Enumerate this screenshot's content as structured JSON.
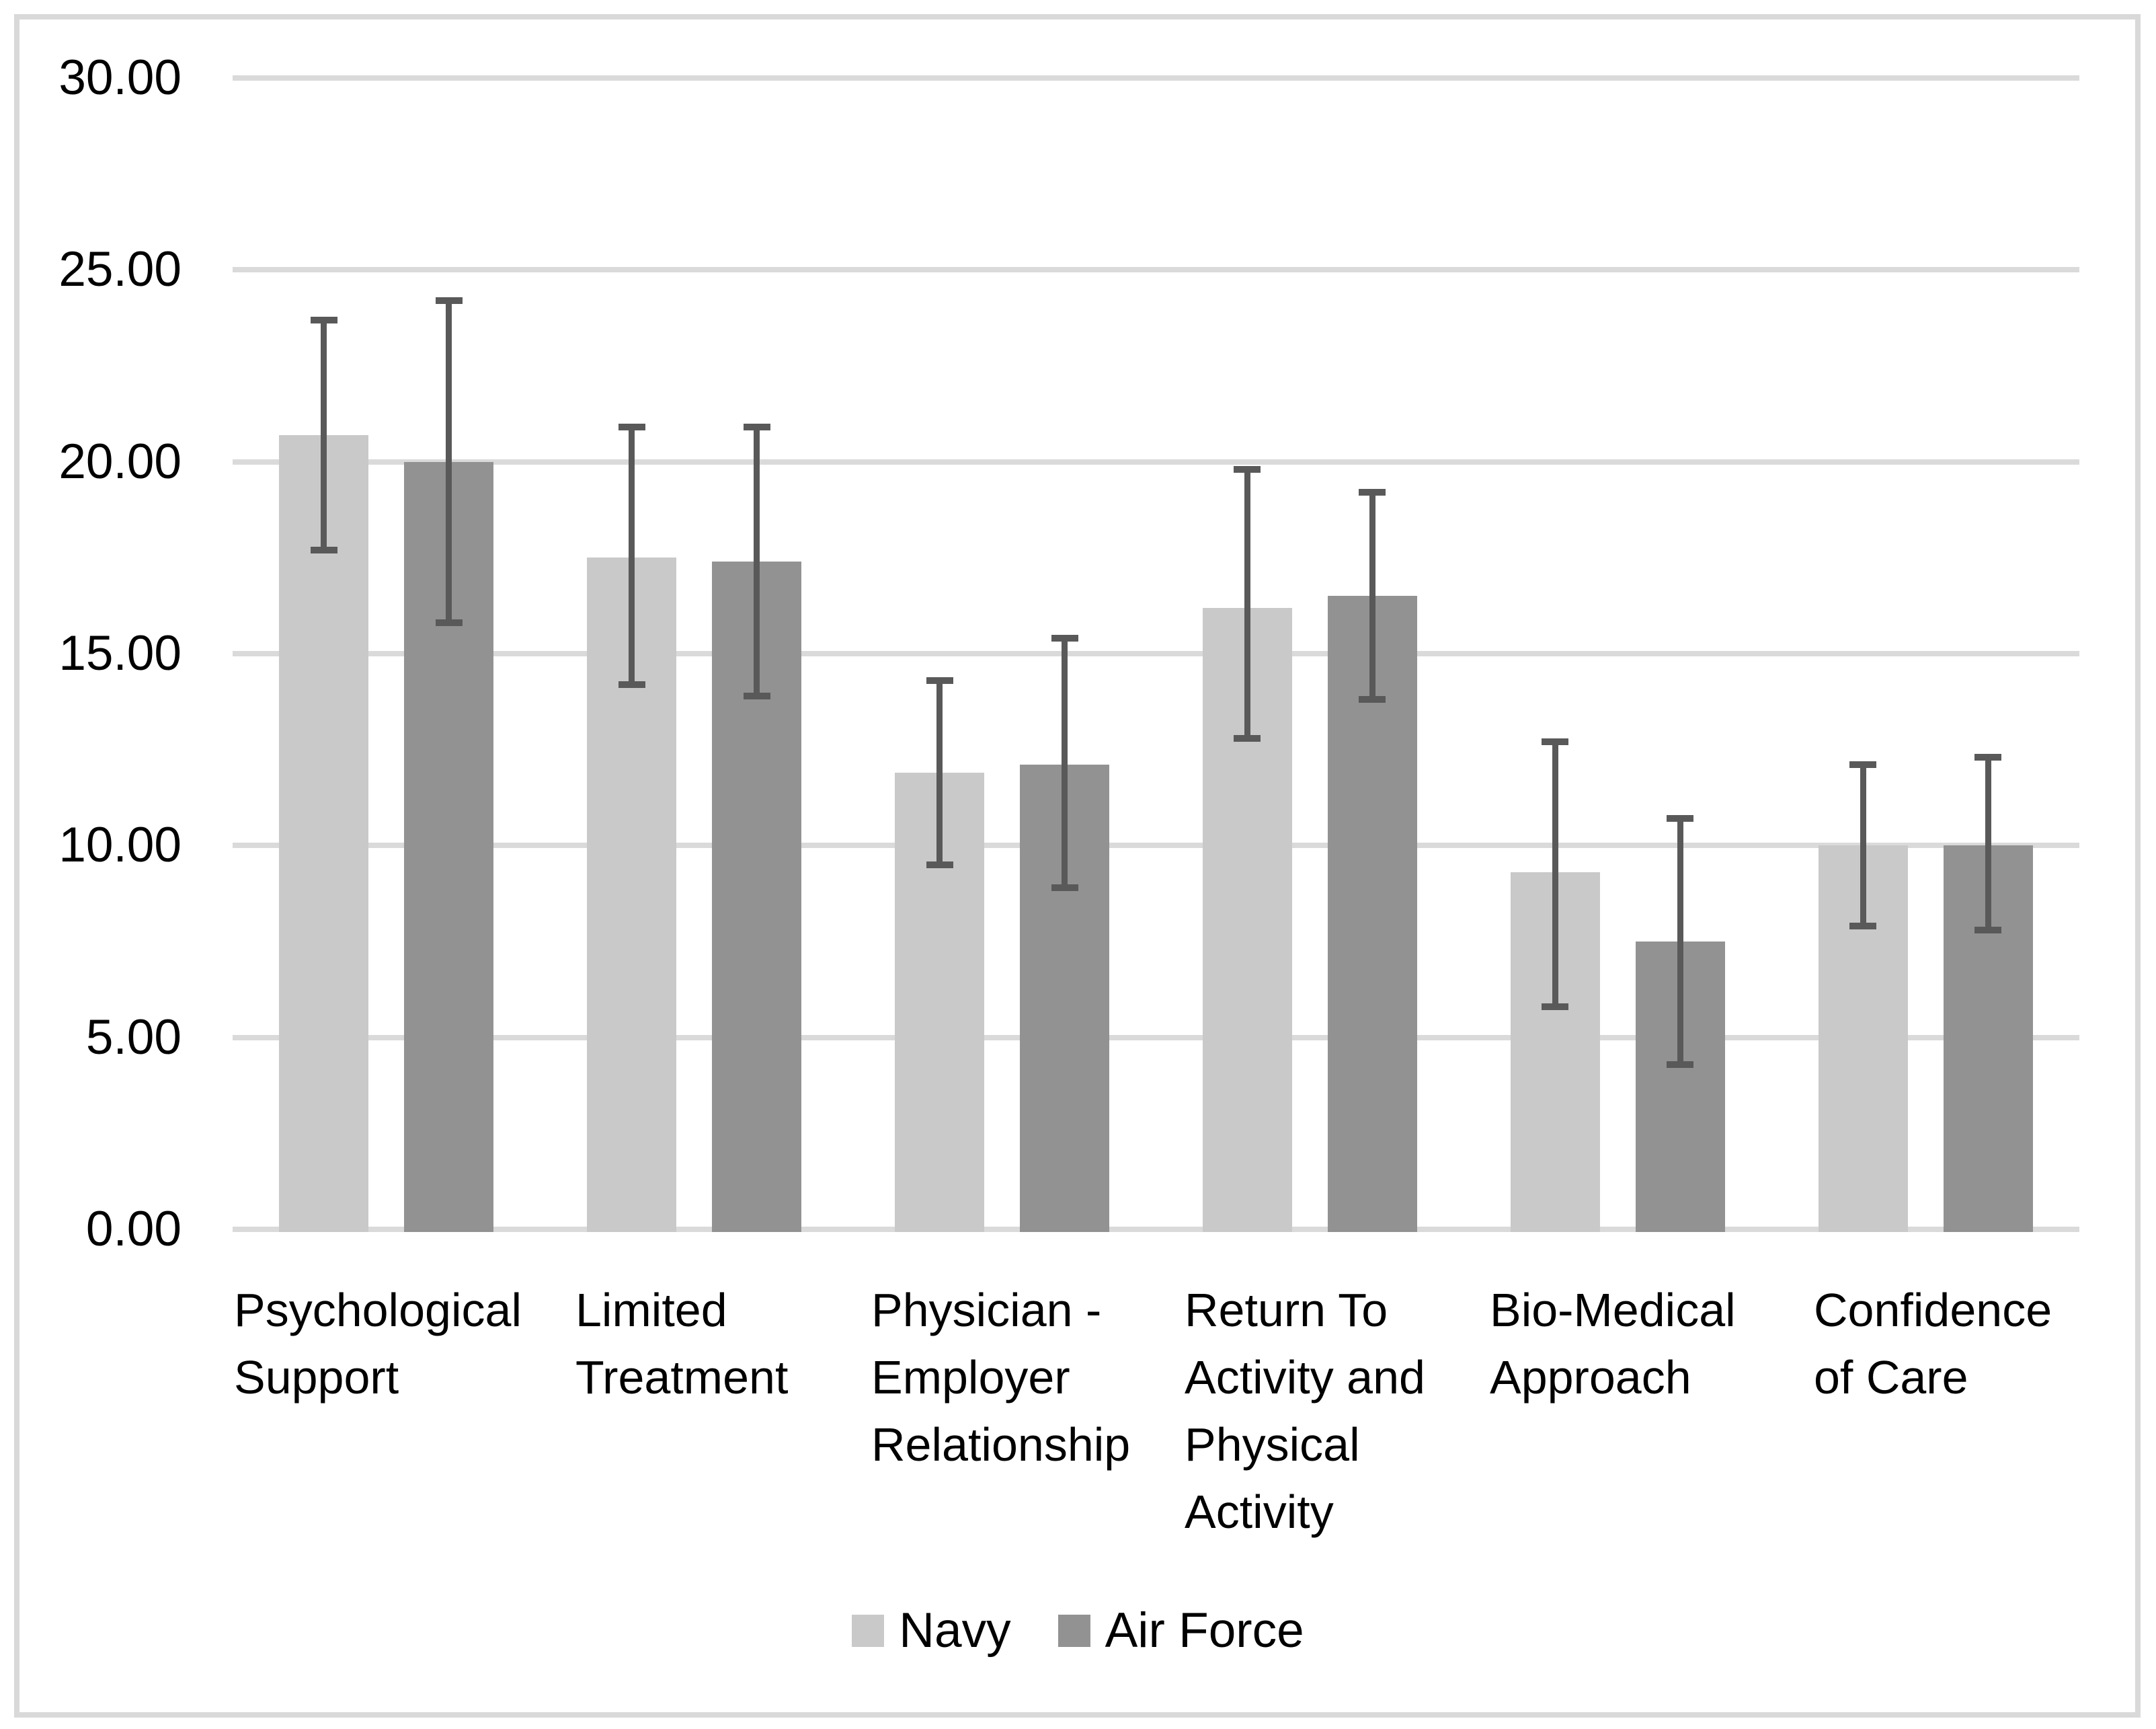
{
  "chart_data": {
    "type": "bar",
    "title": "",
    "xlabel": "",
    "ylabel": "",
    "categories": [
      "Psychological Support",
      "Limited Treatment",
      "Physician - Employer Relationship",
      "Return To Activity and Physical Activity",
      "Bio-Medical Approach",
      "Confidence of Care"
    ],
    "categories_wrapped": [
      [
        "Psychological",
        "Support"
      ],
      [
        "Limited",
        "Treatment"
      ],
      [
        "Physician -",
        "Employer",
        "Relationship"
      ],
      [
        "Return To",
        "Activity and",
        "Physical",
        "Activity"
      ],
      [
        "Bio-Medical",
        "Approach"
      ],
      [
        "Confidence",
        "of Care"
      ]
    ],
    "series": [
      {
        "name": "Navy",
        "color": "#c9c9c9",
        "values": [
          20.7,
          17.5,
          11.9,
          16.2,
          9.3,
          10.0
        ],
        "error_low": [
          17.7,
          14.2,
          9.5,
          12.8,
          5.8,
          7.9
        ],
        "error_high": [
          23.7,
          20.9,
          14.3,
          19.8,
          12.7,
          12.1
        ]
      },
      {
        "name": "Air Force",
        "color": "#929292",
        "values": [
          20.0,
          17.4,
          12.1,
          16.5,
          7.5,
          10.0
        ],
        "error_low": [
          15.8,
          13.9,
          8.9,
          13.8,
          4.3,
          7.8
        ],
        "error_high": [
          24.2,
          20.9,
          15.4,
          19.2,
          10.7,
          12.3
        ]
      }
    ],
    "y_axis": {
      "min": 0,
      "max": 30,
      "step": 5,
      "tick_labels": [
        "0.00",
        "5.00",
        "10.00",
        "15.00",
        "20.00",
        "25.00",
        "30.00"
      ]
    },
    "grid": true,
    "legend_position": "bottom",
    "colors": {
      "error_bar": "#595959",
      "gridline": "#dadada",
      "frame_border": "#d9d9d9",
      "text": "#000000",
      "background": "#ffffff"
    }
  }
}
